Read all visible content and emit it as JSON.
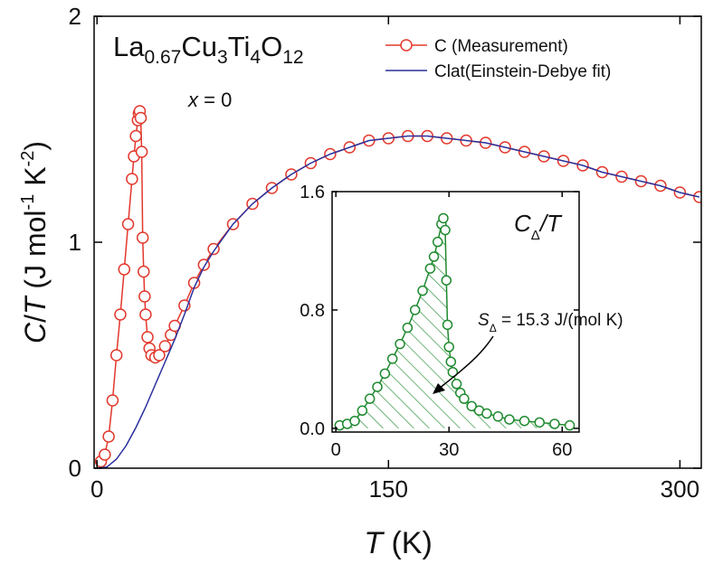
{
  "chart_data": [
    {
      "type": "line",
      "xlabel": [
        "T",
        " (K)"
      ],
      "ylabel": [
        "C",
        "/",
        "T",
        " (J mol",
        "-1",
        " K",
        "-2",
        ")"
      ],
      "formula": [
        "La",
        "0.67",
        "Cu",
        "3",
        "Ti",
        "4",
        "O",
        "12"
      ],
      "annotation": [
        "x",
        " = 0"
      ],
      "xlim": [
        -1.5,
        311
      ],
      "ylim": [
        0,
        2
      ],
      "xticks": [
        0,
        150,
        300
      ],
      "yticks": [
        0,
        1,
        2
      ],
      "legend": "upper right",
      "series": [
        {
          "name": "C (Measurement)",
          "color": "#e2382c",
          "marker": "circle",
          "x": [
            2,
            4,
            6,
            8,
            10,
            12,
            14,
            16,
            18,
            19,
            20,
            21,
            21.5,
            22,
            22.5,
            23,
            23.5,
            24,
            24.5,
            25,
            26,
            27,
            28,
            30,
            32,
            35,
            38,
            40,
            45,
            50,
            55,
            60,
            70,
            80,
            90,
            100,
            110,
            120,
            130,
            140,
            150,
            160,
            170,
            180,
            190,
            200,
            210,
            220,
            230,
            240,
            250,
            260,
            270,
            280,
            290,
            300,
            310
          ],
          "values": [
            0.03,
            0.06,
            0.14,
            0.3,
            0.5,
            0.68,
            0.88,
            1.08,
            1.28,
            1.38,
            1.47,
            1.54,
            1.57,
            1.58,
            1.55,
            1.4,
            1.02,
            0.87,
            0.76,
            0.68,
            0.58,
            0.53,
            0.5,
            0.49,
            0.5,
            0.54,
            0.59,
            0.63,
            0.72,
            0.82,
            0.9,
            0.97,
            1.08,
            1.17,
            1.24,
            1.3,
            1.35,
            1.39,
            1.42,
            1.45,
            1.46,
            1.47,
            1.47,
            1.46,
            1.45,
            1.44,
            1.42,
            1.4,
            1.38,
            1.36,
            1.34,
            1.31,
            1.29,
            1.27,
            1.25,
            1.22,
            1.2
          ]
        },
        {
          "name": "Clat(Einstein-Debye fit)",
          "color": "#2a2f9c",
          "marker": "none",
          "x": [
            0,
            5,
            10,
            15,
            20,
            25,
            30,
            35,
            40,
            45,
            50,
            55,
            60,
            70,
            80,
            90,
            100,
            110,
            120,
            130,
            140,
            150,
            160,
            170,
            180,
            190,
            200,
            210,
            220,
            230,
            240,
            250,
            260,
            270,
            280,
            290,
            300,
            310
          ],
          "values": [
            0,
            0.005,
            0.04,
            0.1,
            0.18,
            0.27,
            0.37,
            0.47,
            0.57,
            0.68,
            0.8,
            0.89,
            0.96,
            1.08,
            1.17,
            1.24,
            1.3,
            1.35,
            1.39,
            1.42,
            1.45,
            1.46,
            1.47,
            1.47,
            1.46,
            1.45,
            1.44,
            1.42,
            1.4,
            1.38,
            1.36,
            1.34,
            1.31,
            1.29,
            1.27,
            1.25,
            1.22,
            1.2
          ]
        }
      ]
    },
    {
      "type": "line",
      "title": [
        "C",
        "Δ",
        "/T"
      ],
      "annotation": [
        "S",
        "Δ",
        " = 15.3 J/(mol K)"
      ],
      "xlim": [
        -1,
        64.5
      ],
      "ylim": [
        -0.025,
        1.6
      ],
      "xticks": [
        0,
        30,
        60
      ],
      "yticks": [
        {
          "value": 0,
          "label": "0.0"
        },
        {
          "value": 0.8,
          "label": "0.8"
        },
        {
          "value": 1.6,
          "label": "1.6"
        }
      ],
      "series": [
        {
          "name": "CΔ/T",
          "color": "#1f8a2f",
          "marker": "circle",
          "fill": "hatch",
          "x": [
            1,
            3,
            5,
            7,
            9,
            11,
            13,
            15,
            17,
            19,
            21,
            23,
            25,
            26,
            27,
            28,
            28.5,
            29,
            29.3,
            29.6,
            30,
            30.5,
            31,
            32,
            33,
            34,
            36,
            38,
            40,
            43,
            46,
            50,
            54,
            58,
            62
          ],
          "values": [
            0.02,
            0.03,
            0.05,
            0.12,
            0.2,
            0.28,
            0.37,
            0.47,
            0.57,
            0.68,
            0.8,
            0.93,
            1.08,
            1.16,
            1.26,
            1.38,
            1.42,
            1.34,
            1.0,
            0.7,
            0.55,
            0.45,
            0.38,
            0.3,
            0.24,
            0.2,
            0.15,
            0.12,
            0.1,
            0.08,
            0.06,
            0.05,
            0.04,
            0.03,
            0.02
          ]
        }
      ]
    }
  ]
}
